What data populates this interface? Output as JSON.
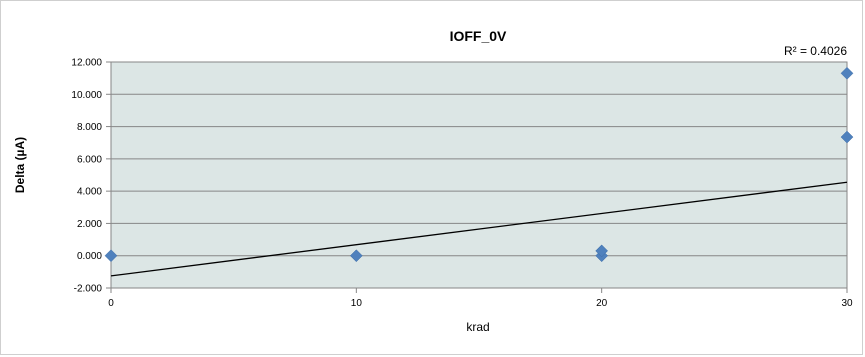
{
  "chart_data": {
    "type": "scatter",
    "title": "IOFF_0V",
    "xlabel": "krad",
    "ylabel": "Delta (µA)",
    "xlim": [
      0,
      30
    ],
    "ylim": [
      -2,
      12
    ],
    "x_ticks": [
      0,
      10,
      20,
      30
    ],
    "y_ticks": [
      -2,
      0,
      2,
      4,
      6,
      8,
      10,
      12
    ],
    "x_tick_labels": [
      "0",
      "10",
      "20",
      "30"
    ],
    "y_tick_labels": [
      "-2.000",
      "0.000",
      "2.000",
      "4.000",
      "6.000",
      "8.000",
      "10.000",
      "12.000"
    ],
    "grid": "horizontal",
    "series": [
      {
        "x": [
          0,
          10,
          20,
          20,
          30,
          30
        ],
        "y": [
          0.0,
          0.0,
          0.0,
          0.3,
          7.35,
          11.3
        ],
        "color": "#4f81bd",
        "marker": "diamond"
      }
    ],
    "trendline": {
      "type": "linear",
      "x": [
        0,
        30
      ],
      "y": [
        -1.25,
        4.55
      ],
      "color": "#000000",
      "r_squared_label": "R² = 0.4026"
    },
    "plot_background": "#dce6e5"
  }
}
